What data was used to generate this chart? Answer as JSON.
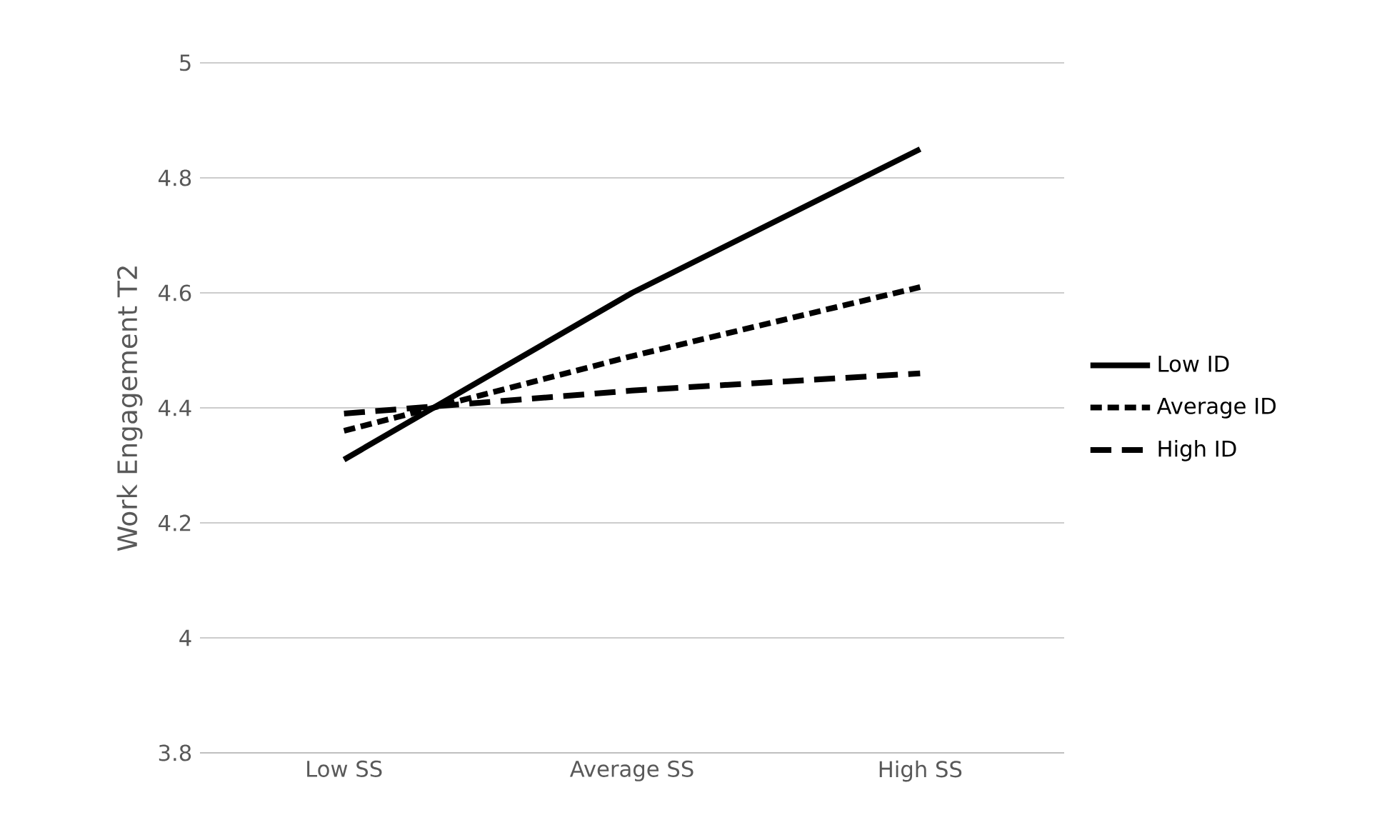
{
  "chart_data": {
    "type": "line",
    "ylabel": "Work Engagement T2",
    "categories": [
      "Low SS",
      "Average SS",
      "High SS"
    ],
    "series": [
      {
        "name": "Low ID",
        "color": "#000000",
        "values": [
          4.31,
          4.6,
          4.85
        ],
        "line_style": "solid"
      },
      {
        "name": "Average ID",
        "color": "#000000",
        "values": [
          4.36,
          4.49,
          4.61
        ],
        "line_style": "dotted"
      },
      {
        "name": "High ID",
        "color": "#000000",
        "values": [
          4.39,
          4.43,
          4.46
        ],
        "line_style": "dashed"
      }
    ],
    "ylim": [
      3.8,
      5
    ],
    "yticks": [
      3.8,
      4,
      4.2,
      4.4,
      4.6,
      4.8,
      5
    ],
    "grid": "y",
    "legend": "right",
    "marker": "none"
  }
}
